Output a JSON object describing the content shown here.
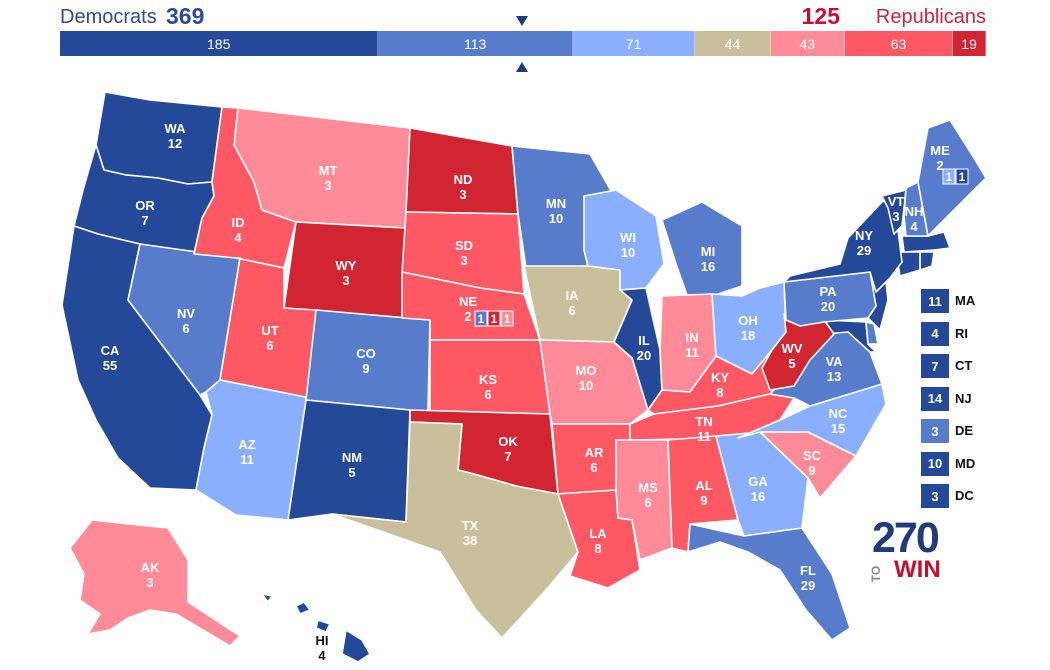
{
  "header": {
    "dem_label": "Democrats",
    "dem_total": "369",
    "rep_total": "125",
    "rep_label": "Republicans"
  },
  "colors": {
    "safe_d": "#244999",
    "likely_d": "#577ccc",
    "lean_d": "#8aafff",
    "tossup": "#c9c09b",
    "lean_r": "#ff8b98",
    "likely_r": "#ff5865",
    "safe_r": "#d22532"
  },
  "bar": [
    {
      "value": "185",
      "rating": "safe_d",
      "votes": 185
    },
    {
      "value": "113",
      "rating": "likely_d",
      "votes": 113
    },
    {
      "value": "71",
      "rating": "lean_d",
      "votes": 71
    },
    {
      "value": "44",
      "rating": "tossup",
      "votes": 44
    },
    {
      "value": "43",
      "rating": "lean_r",
      "votes": 43
    },
    {
      "value": "63",
      "rating": "likely_r",
      "votes": 63
    },
    {
      "value": "19",
      "rating": "safe_r",
      "votes": 19
    }
  ],
  "states": [
    {
      "abbr": "WA",
      "ev": "12",
      "rating": "safe_d"
    },
    {
      "abbr": "OR",
      "ev": "7",
      "rating": "safe_d"
    },
    {
      "abbr": "CA",
      "ev": "55",
      "rating": "safe_d"
    },
    {
      "abbr": "NV",
      "ev": "6",
      "rating": "likely_d"
    },
    {
      "abbr": "ID",
      "ev": "4",
      "rating": "likely_r"
    },
    {
      "abbr": "MT",
      "ev": "3",
      "rating": "lean_r"
    },
    {
      "abbr": "WY",
      "ev": "3",
      "rating": "safe_r"
    },
    {
      "abbr": "UT",
      "ev": "6",
      "rating": "likely_r"
    },
    {
      "abbr": "AZ",
      "ev": "11",
      "rating": "lean_d"
    },
    {
      "abbr": "CO",
      "ev": "9",
      "rating": "likely_d"
    },
    {
      "abbr": "NM",
      "ev": "5",
      "rating": "safe_d"
    },
    {
      "abbr": "ND",
      "ev": "3",
      "rating": "safe_r"
    },
    {
      "abbr": "SD",
      "ev": "3",
      "rating": "likely_r"
    },
    {
      "abbr": "NE",
      "ev": "2",
      "rating": "likely_r"
    },
    {
      "abbr": "KS",
      "ev": "6",
      "rating": "likely_r"
    },
    {
      "abbr": "OK",
      "ev": "7",
      "rating": "safe_r"
    },
    {
      "abbr": "TX",
      "ev": "38",
      "rating": "tossup"
    },
    {
      "abbr": "MN",
      "ev": "10",
      "rating": "likely_d"
    },
    {
      "abbr": "IA",
      "ev": "6",
      "rating": "tossup"
    },
    {
      "abbr": "MO",
      "ev": "10",
      "rating": "lean_r"
    },
    {
      "abbr": "AR",
      "ev": "6",
      "rating": "likely_r"
    },
    {
      "abbr": "LA",
      "ev": "8",
      "rating": "likely_r"
    },
    {
      "abbr": "WI",
      "ev": "10",
      "rating": "lean_d"
    },
    {
      "abbr": "IL",
      "ev": "20",
      "rating": "safe_d"
    },
    {
      "abbr": "MI",
      "ev": "16",
      "rating": "likely_d"
    },
    {
      "abbr": "IN",
      "ev": "11",
      "rating": "lean_r"
    },
    {
      "abbr": "OH",
      "ev": "18",
      "rating": "lean_d"
    },
    {
      "abbr": "KY",
      "ev": "8",
      "rating": "likely_r"
    },
    {
      "abbr": "TN",
      "ev": "11",
      "rating": "likely_r"
    },
    {
      "abbr": "MS",
      "ev": "6",
      "rating": "lean_r"
    },
    {
      "abbr": "AL",
      "ev": "9",
      "rating": "likely_r"
    },
    {
      "abbr": "GA",
      "ev": "16",
      "rating": "lean_d"
    },
    {
      "abbr": "FL",
      "ev": "29",
      "rating": "likely_d"
    },
    {
      "abbr": "SC",
      "ev": "9",
      "rating": "lean_r"
    },
    {
      "abbr": "NC",
      "ev": "15",
      "rating": "lean_d"
    },
    {
      "abbr": "VA",
      "ev": "13",
      "rating": "likely_d"
    },
    {
      "abbr": "WV",
      "ev": "5",
      "rating": "safe_r"
    },
    {
      "abbr": "PA",
      "ev": "20",
      "rating": "likely_d"
    },
    {
      "abbr": "NY",
      "ev": "29",
      "rating": "safe_d"
    },
    {
      "abbr": "VT",
      "ev": "3",
      "rating": "safe_d"
    },
    {
      "abbr": "NH",
      "ev": "4",
      "rating": "likely_d"
    },
    {
      "abbr": "ME",
      "ev": "2",
      "rating": "likely_d"
    },
    {
      "abbr": "AK",
      "ev": "3",
      "rating": "lean_r"
    },
    {
      "abbr": "HI",
      "ev": "4",
      "rating": "safe_d"
    }
  ],
  "me_districts": [
    {
      "value": "1",
      "rating": "lean_d"
    },
    {
      "value": "1",
      "rating": "safe_d"
    }
  ],
  "ne_districts": [
    {
      "value": "1",
      "rating": "likely_d"
    },
    {
      "value": "1",
      "rating": "safe_r"
    },
    {
      "value": "1",
      "rating": "lean_r"
    }
  ],
  "small_states": [
    {
      "ev": "11",
      "abbr": "MA",
      "rating": "safe_d"
    },
    {
      "ev": "4",
      "abbr": "RI",
      "rating": "safe_d"
    },
    {
      "ev": "7",
      "abbr": "CT",
      "rating": "safe_d"
    },
    {
      "ev": "14",
      "abbr": "NJ",
      "rating": "safe_d"
    },
    {
      "ev": "3",
      "abbr": "DE",
      "rating": "likely_d"
    },
    {
      "ev": "10",
      "abbr": "MD",
      "rating": "safe_d"
    },
    {
      "ev": "3",
      "abbr": "DC",
      "rating": "safe_d"
    }
  ],
  "logo": {
    "number": "270",
    "to": "TO",
    "win": "WIN"
  }
}
